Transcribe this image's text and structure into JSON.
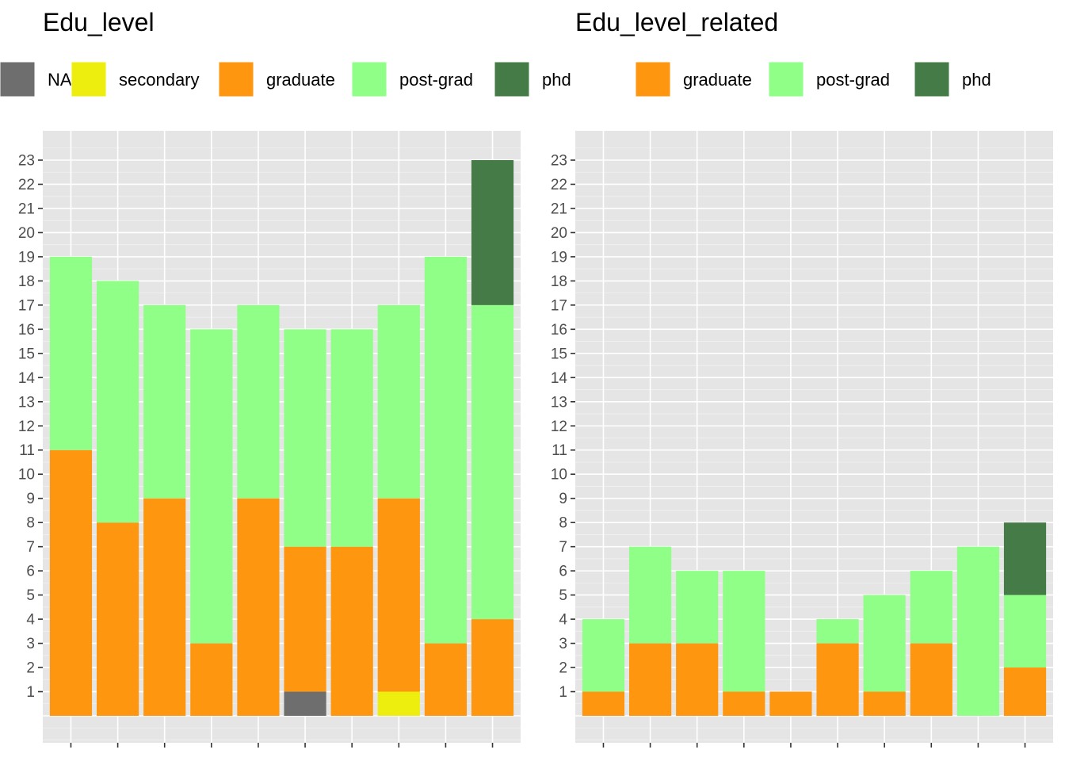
{
  "chart_data": [
    {
      "type": "bar",
      "stacked": true,
      "title": "Edu_level",
      "xlabel": "",
      "ylabel": "",
      "ylim": [
        0,
        23
      ],
      "y_ticks": [
        1,
        2,
        3,
        4,
        5,
        6,
        7,
        8,
        9,
        10,
        11,
        12,
        13,
        14,
        15,
        16,
        17,
        18,
        19,
        20,
        21,
        22,
        23
      ],
      "categories": [
        "",
        "",
        "",
        "",
        "",
        "",
        "",
        "",
        "",
        ""
      ],
      "grid": true,
      "legend_position": "top",
      "series": [
        {
          "name": "NA",
          "color": "#6e6e6e",
          "values": [
            0,
            0,
            0,
            0,
            0,
            1,
            0,
            0,
            0,
            0
          ]
        },
        {
          "name": "secondary",
          "color": "#eeee0e",
          "values": [
            0,
            0,
            0,
            0,
            0,
            0,
            0,
            1,
            0,
            0
          ]
        },
        {
          "name": "graduate",
          "color": "#ff960f",
          "values": [
            11,
            8,
            9,
            3,
            9,
            6,
            7,
            8,
            3,
            4
          ]
        },
        {
          "name": "post-grad",
          "color": "#90ff87",
          "values": [
            8,
            10,
            8,
            13,
            8,
            9,
            9,
            8,
            16,
            13
          ]
        },
        {
          "name": "phd",
          "color": "#457b46",
          "values": [
            0,
            0,
            0,
            0,
            0,
            0,
            0,
            0,
            0,
            6
          ]
        }
      ]
    },
    {
      "type": "bar",
      "stacked": true,
      "title": "Edu_level_related",
      "xlabel": "",
      "ylabel": "",
      "ylim": [
        0,
        23
      ],
      "y_ticks": [
        1,
        2,
        3,
        4,
        5,
        6,
        7,
        8,
        9,
        10,
        11,
        12,
        13,
        14,
        15,
        16,
        17,
        18,
        19,
        20,
        21,
        22,
        23
      ],
      "categories": [
        "",
        "",
        "",
        "",
        "",
        "",
        "",
        "",
        "",
        ""
      ],
      "grid": true,
      "legend_position": "top",
      "series": [
        {
          "name": "graduate",
          "color": "#ff960f",
          "values": [
            1,
            3,
            3,
            1,
            1,
            3,
            1,
            3,
            0,
            2
          ]
        },
        {
          "name": "post-grad",
          "color": "#90ff87",
          "values": [
            3,
            4,
            3,
            5,
            0,
            1,
            4,
            3,
            7,
            3
          ]
        },
        {
          "name": "phd",
          "color": "#457b46",
          "values": [
            0,
            0,
            0,
            0,
            0,
            0,
            0,
            0,
            0,
            3
          ]
        }
      ]
    }
  ]
}
